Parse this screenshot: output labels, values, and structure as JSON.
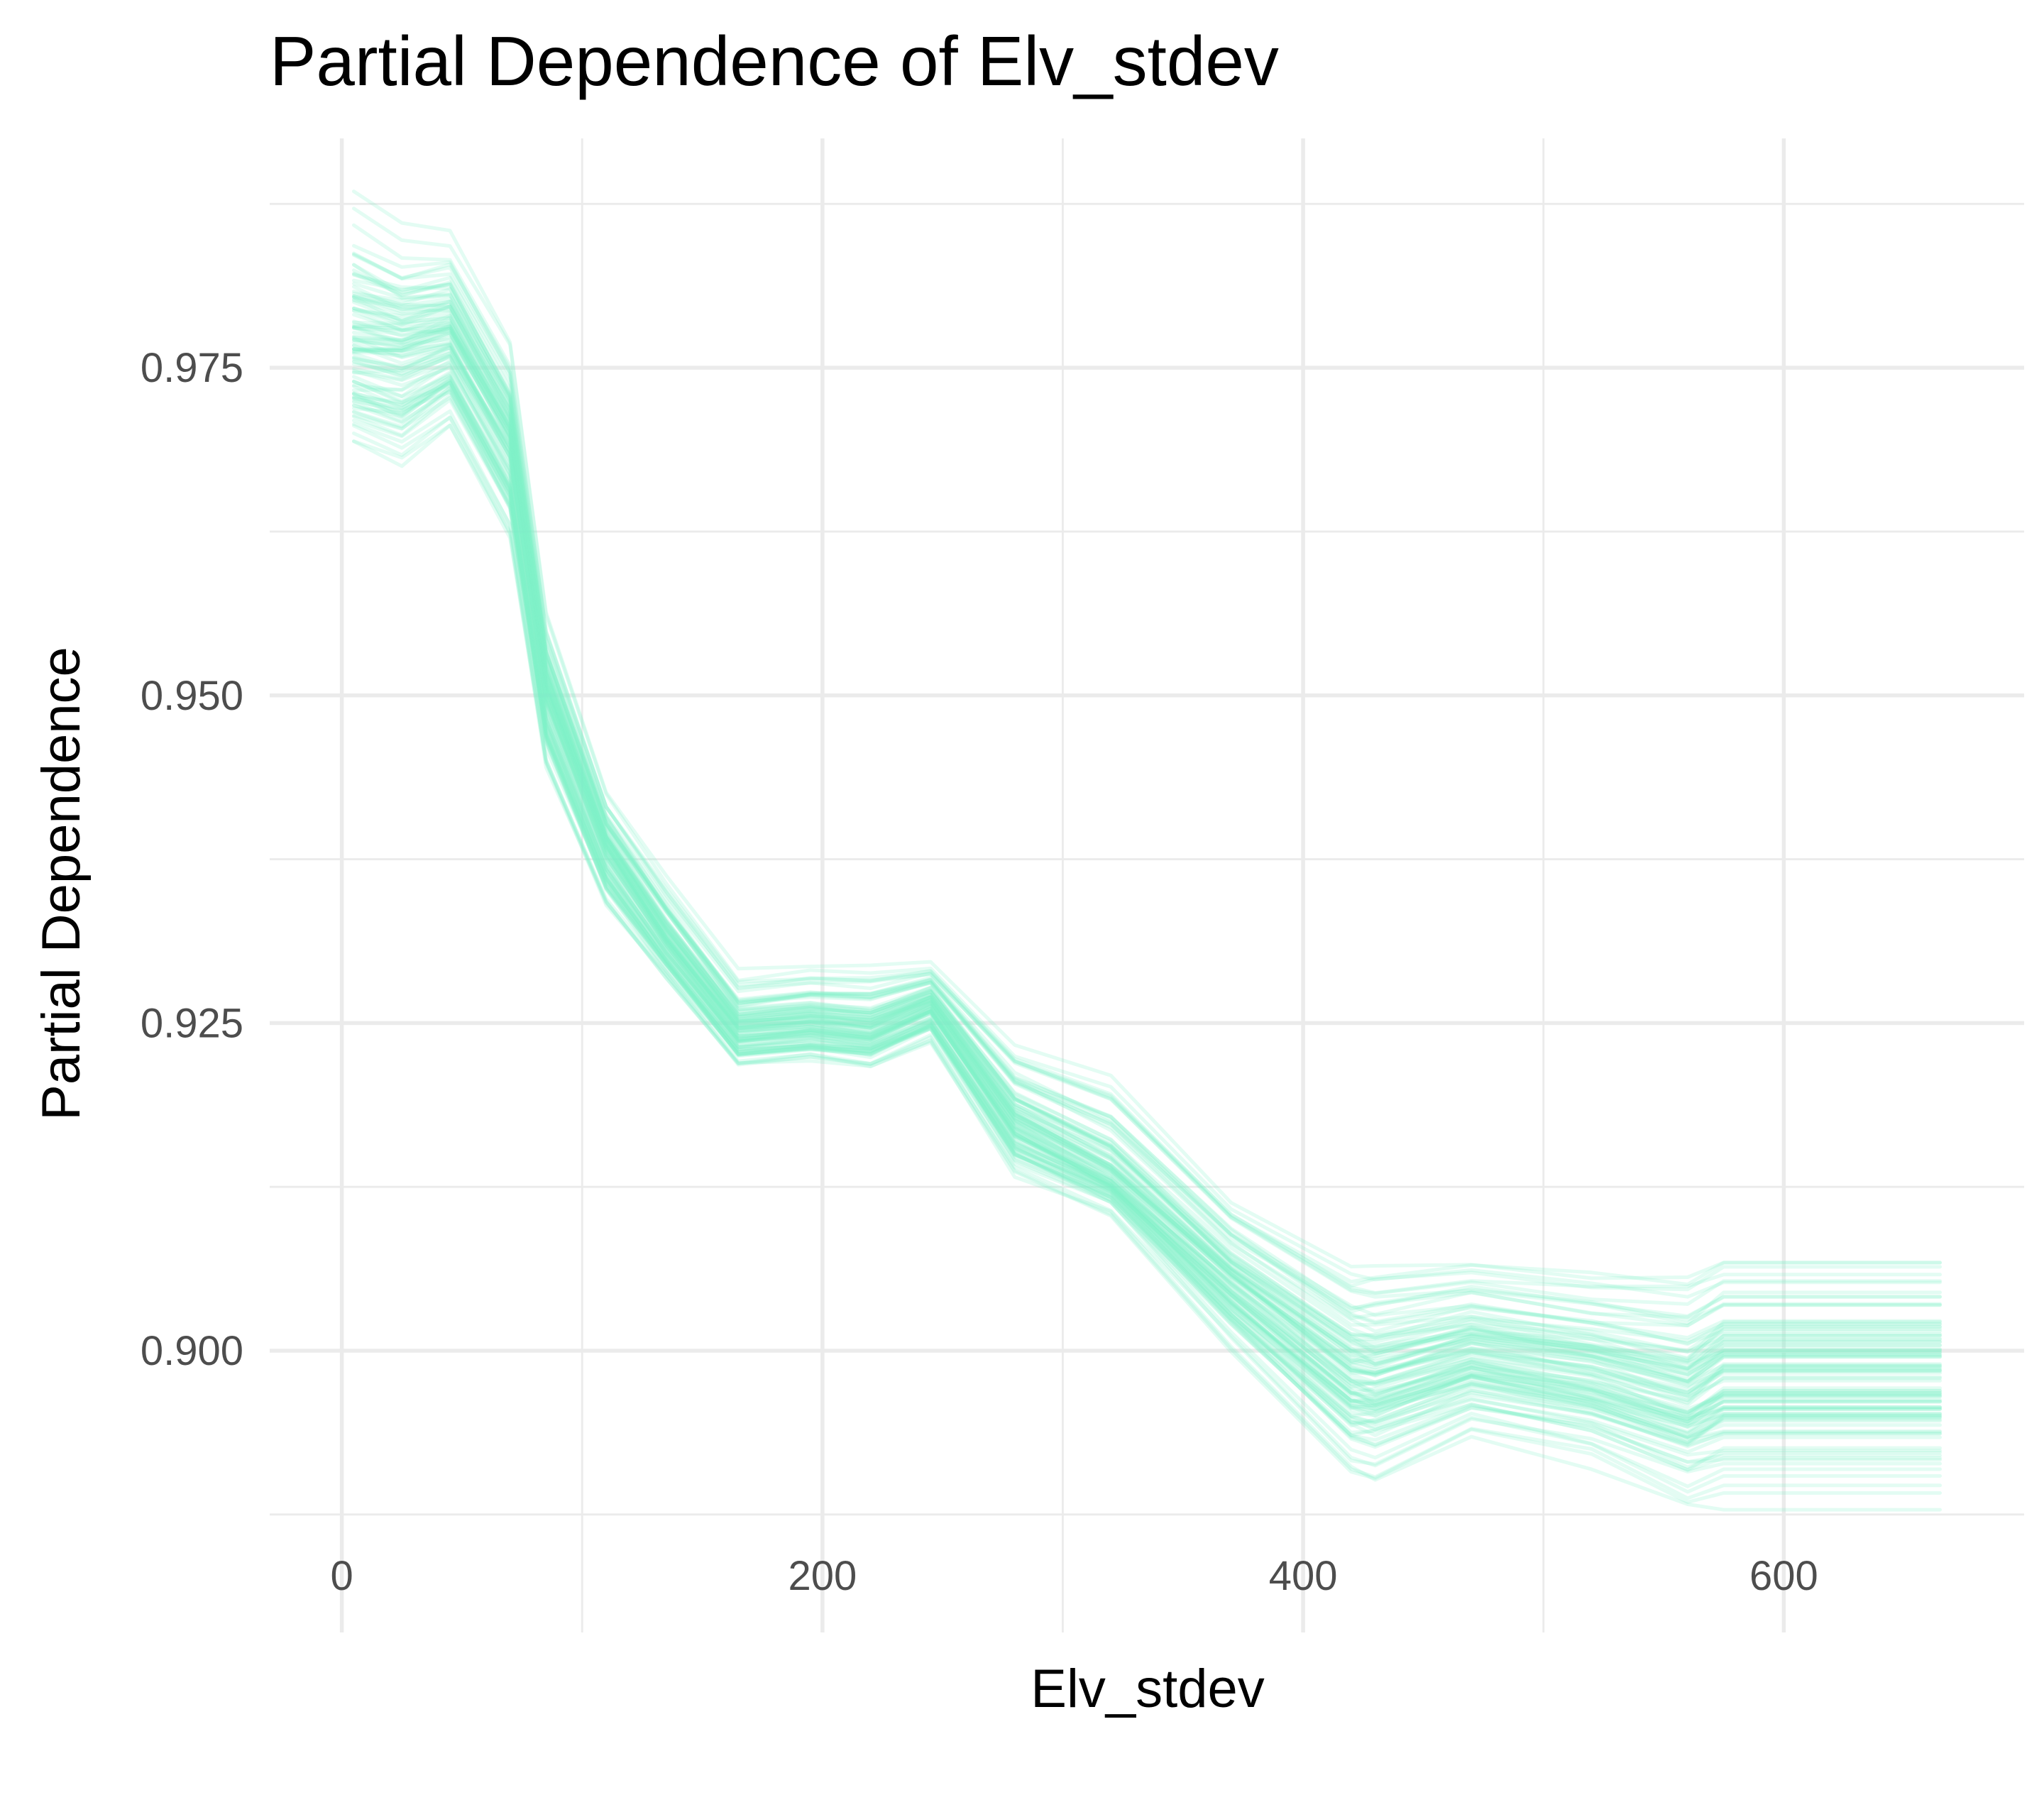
{
  "chart_data": {
    "type": "line",
    "title": "Partial Dependence of Elv_stdev",
    "xlabel": "Elv_stdev",
    "ylabel": "Partial Dependence",
    "xlim": [
      -30,
      700
    ],
    "ylim": [
      0.8785,
      0.9925
    ],
    "x_ticks": [
      0,
      200,
      400,
      600
    ],
    "x_tick_labels": [
      "0",
      "200",
      "400",
      "600"
    ],
    "x_minor_ticks": [
      100,
      300,
      500
    ],
    "y_ticks": [
      0.9,
      0.925,
      0.95,
      0.975
    ],
    "y_tick_labels": [
      "0.900",
      "0.925",
      "0.950",
      "0.975"
    ],
    "y_minor_ticks": [
      0.8875,
      0.9125,
      0.9375,
      0.9625,
      0.9875
    ],
    "grid": true,
    "legend": "none",
    "line_color": "#7FF0C8",
    "line_opacity": 0.22,
    "n_series": 100,
    "x": [
      5,
      25,
      45,
      70,
      85,
      110,
      135,
      165,
      195,
      220,
      245,
      280,
      320,
      370,
      420,
      430,
      470,
      520,
      560,
      575,
      665
    ],
    "mean_curve": [
      0.977,
      0.9765,
      0.9775,
      0.9695,
      0.9505,
      0.9385,
      0.9315,
      0.9245,
      0.925,
      0.9245,
      0.9265,
      0.9175,
      0.9135,
      0.9055,
      0.8985,
      0.898,
      0.9,
      0.8985,
      0.8965,
      0.8985,
      0.8985
    ],
    "band_lower": [
      0.966,
      0.964,
      0.968,
      0.959,
      0.942,
      0.932,
      0.927,
      0.9205,
      0.921,
      0.9205,
      0.9225,
      0.912,
      0.9095,
      0.8985,
      0.8885,
      0.8885,
      0.892,
      0.89,
      0.8865,
      0.8865,
      0.8865
    ],
    "band_upper": [
      0.99,
      0.987,
      0.987,
      0.979,
      0.9575,
      0.9435,
      0.9375,
      0.93,
      0.9305,
      0.9305,
      0.9305,
      0.925,
      0.923,
      0.913,
      0.9085,
      0.909,
      0.909,
      0.9085,
      0.9085,
      0.9095,
      0.9095
    ]
  }
}
